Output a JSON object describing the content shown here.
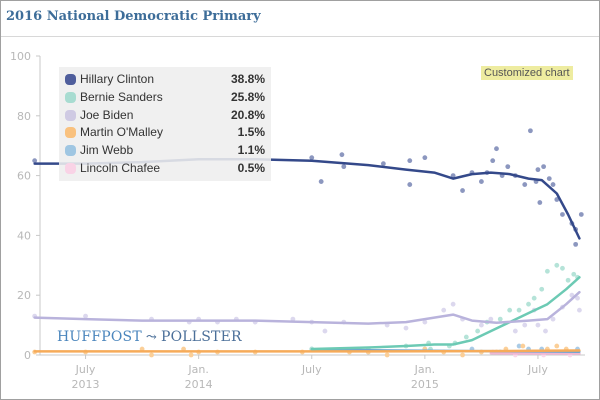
{
  "header": {
    "title": "2016 National Democratic Primary"
  },
  "badge": {
    "label": "Customized chart"
  },
  "logo": {
    "part1": "HUFFPOST",
    "part2": "POLLSTER",
    "icon": "swoosh-icon"
  },
  "legend": {
    "items": [
      {
        "name": "Hillary Clinton",
        "value": "38.8%",
        "color": "#4f5e9c"
      },
      {
        "name": "Bernie Sanders",
        "value": "25.8%",
        "color": "#a8dcd1"
      },
      {
        "name": "Joe Biden",
        "value": "20.8%",
        "color": "#cfcae3"
      },
      {
        "name": "Martin O'Malley",
        "value": "1.5%",
        "color": "#f9c17e"
      },
      {
        "name": "Jim Webb",
        "value": "1.1%",
        "color": "#9fc6e2"
      },
      {
        "name": "Lincoln Chafee",
        "value": "0.5%",
        "color": "#f9d3e6"
      }
    ]
  },
  "chart_data": {
    "type": "line",
    "title": "2016 National Democratic Primary",
    "xlabel": "",
    "ylabel": "",
    "ylim": [
      0,
      100
    ],
    "xlim": [
      "2013-04",
      "2015-09"
    ],
    "yticks": [
      "0",
      "20",
      "40",
      "60",
      "80",
      "100"
    ],
    "xticks": [
      {
        "month": "July",
        "year": "2013",
        "t": 3
      },
      {
        "month": "Jan.",
        "year": "2014",
        "t": 9
      },
      {
        "month": "July",
        "year": "",
        "t": 15
      },
      {
        "month": "Jan.",
        "year": "2015",
        "t": 21
      },
      {
        "month": "July",
        "year": "",
        "t": 27
      }
    ],
    "x_unit": "months since 2013-04",
    "series": [
      {
        "name": "Hillary Clinton",
        "color": "#34498a",
        "dot_color": "#8c97bf",
        "trend": [
          [
            0.3,
            64
          ],
          [
            3,
            64
          ],
          [
            6,
            64.5
          ],
          [
            9,
            65.5
          ],
          [
            12,
            65.5
          ],
          [
            15,
            65
          ],
          [
            18,
            63.5
          ],
          [
            20,
            62
          ],
          [
            21.5,
            61
          ],
          [
            22.5,
            59
          ],
          [
            23.5,
            60.5
          ],
          [
            24.5,
            61
          ],
          [
            25.5,
            60.5
          ],
          [
            26.5,
            59
          ],
          [
            27.2,
            58.5
          ],
          [
            28,
            54
          ],
          [
            28.6,
            47
          ],
          [
            29.2,
            39
          ]
        ],
        "points": [
          [
            0.3,
            65
          ],
          [
            15,
            66
          ],
          [
            15.5,
            58
          ],
          [
            16.6,
            67
          ],
          [
            16.7,
            63
          ],
          [
            18.8,
            64
          ],
          [
            20.2,
            65
          ],
          [
            20.2,
            57
          ],
          [
            21,
            66
          ],
          [
            22.5,
            60
          ],
          [
            23,
            55
          ],
          [
            23.5,
            61
          ],
          [
            24,
            58
          ],
          [
            24.3,
            61
          ],
          [
            24.6,
            65
          ],
          [
            24.8,
            69
          ],
          [
            25.1,
            60
          ],
          [
            25.4,
            63
          ],
          [
            25.8,
            60
          ],
          [
            26.3,
            57
          ],
          [
            26.6,
            75
          ],
          [
            26.9,
            58
          ],
          [
            27,
            62
          ],
          [
            27.3,
            63
          ],
          [
            27.1,
            51
          ],
          [
            27.6,
            59
          ],
          [
            27.8,
            57
          ],
          [
            28,
            52
          ],
          [
            28.3,
            47
          ],
          [
            28.8,
            44
          ],
          [
            29,
            37
          ],
          [
            29.3,
            47
          ],
          [
            29,
            42
          ]
        ]
      },
      {
        "name": "Joe Biden",
        "color": "#b9b3dc",
        "dot_color": "#dcd8ee",
        "trend": [
          [
            0.3,
            12.5
          ],
          [
            3,
            12
          ],
          [
            6,
            11.5
          ],
          [
            9,
            11.5
          ],
          [
            12,
            11.5
          ],
          [
            15,
            11
          ],
          [
            18,
            10.5
          ],
          [
            20,
            11
          ],
          [
            22.5,
            13.5
          ],
          [
            23.5,
            11.5
          ],
          [
            24.8,
            10.8
          ],
          [
            26.5,
            11.5
          ],
          [
            27.5,
            12
          ],
          [
            28.5,
            17
          ],
          [
            29.2,
            21
          ]
        ],
        "points": [
          [
            0.3,
            13
          ],
          [
            3,
            13
          ],
          [
            6.5,
            12
          ],
          [
            8.5,
            11
          ],
          [
            9,
            12
          ],
          [
            10,
            11
          ],
          [
            11,
            12
          ],
          [
            12,
            11
          ],
          [
            14,
            12
          ],
          [
            15,
            11
          ],
          [
            15.7,
            8
          ],
          [
            16.7,
            11
          ],
          [
            19,
            10
          ],
          [
            20,
            9
          ],
          [
            21,
            11
          ],
          [
            22,
            15
          ],
          [
            22.5,
            17
          ],
          [
            23,
            12
          ],
          [
            24,
            10
          ],
          [
            24.5,
            12
          ],
          [
            25.8,
            8
          ],
          [
            26.3,
            10
          ],
          [
            26.8,
            15
          ],
          [
            27,
            10
          ],
          [
            27.4,
            8
          ],
          [
            27.8,
            12
          ],
          [
            28.3,
            16
          ],
          [
            28.8,
            20
          ],
          [
            29.2,
            15
          ],
          [
            29.1,
            19
          ]
        ]
      },
      {
        "name": "Bernie Sanders",
        "color": "#6ccab4",
        "dot_color": "#b5e3d8",
        "trend": [
          [
            15,
            2
          ],
          [
            18,
            2.5
          ],
          [
            20,
            3
          ],
          [
            21.5,
            3.5
          ],
          [
            22.5,
            3.5
          ],
          [
            23.5,
            5
          ],
          [
            24.5,
            8
          ],
          [
            25.5,
            11
          ],
          [
            26.5,
            14
          ],
          [
            27.5,
            17
          ],
          [
            28.5,
            22
          ],
          [
            29.2,
            26
          ]
        ],
        "points": [
          [
            15,
            2
          ],
          [
            18,
            2
          ],
          [
            20,
            3
          ],
          [
            21.2,
            4
          ],
          [
            21.3,
            2
          ],
          [
            22.3,
            3
          ],
          [
            22.6,
            4
          ],
          [
            23.2,
            6
          ],
          [
            23.8,
            8
          ],
          [
            24.3,
            11
          ],
          [
            25,
            12
          ],
          [
            25.5,
            15
          ],
          [
            26,
            15
          ],
          [
            26.5,
            17
          ],
          [
            26.8,
            19
          ],
          [
            27.2,
            22
          ],
          [
            27.5,
            28
          ],
          [
            28,
            30
          ],
          [
            28.3,
            29
          ],
          [
            28.6,
            25
          ],
          [
            29.1,
            26
          ],
          [
            28.9,
            27
          ]
        ]
      },
      {
        "name": "Martin O'Malley",
        "color": "#f6ab59",
        "dot_color": "#fbcf98",
        "trend": [
          [
            0.3,
            1.2
          ],
          [
            6,
            1.2
          ],
          [
            12,
            1.2
          ],
          [
            18,
            1.2
          ],
          [
            24,
            1.3
          ],
          [
            27,
            1.4
          ],
          [
            29.2,
            1.5
          ]
        ],
        "points": [
          [
            0.3,
            1
          ],
          [
            3,
            1
          ],
          [
            6,
            2
          ],
          [
            6.5,
            0
          ],
          [
            8.2,
            2
          ],
          [
            8.6,
            0
          ],
          [
            9,
            1
          ],
          [
            10,
            1
          ],
          [
            12,
            1
          ],
          [
            14.5,
            1
          ],
          [
            17,
            1
          ],
          [
            18,
            1
          ],
          [
            19,
            0
          ],
          [
            21,
            2
          ],
          [
            22,
            1
          ],
          [
            23,
            0
          ],
          [
            24,
            1
          ],
          [
            24.8,
            1
          ],
          [
            25.3,
            2
          ],
          [
            26.2,
            3
          ],
          [
            26.8,
            1
          ],
          [
            27.5,
            2
          ],
          [
            28,
            3
          ],
          [
            28.5,
            2
          ],
          [
            29,
            1
          ]
        ]
      },
      {
        "name": "Jim Webb",
        "color": "#6fa6cf",
        "dot_color": "#aacbe6",
        "trend": [
          [
            15,
            1.8
          ],
          [
            18,
            1.6
          ],
          [
            21,
            1.4
          ],
          [
            24,
            1.3
          ],
          [
            27,
            1.2
          ],
          [
            29.2,
            1.1
          ]
        ],
        "points": [
          [
            15,
            2
          ],
          [
            18,
            1
          ],
          [
            21,
            2
          ],
          [
            23.5,
            2
          ],
          [
            25,
            1
          ],
          [
            26,
            3
          ],
          [
            26.5,
            2
          ],
          [
            27.2,
            2
          ],
          [
            28,
            1
          ],
          [
            28.7,
            1
          ],
          [
            29.1,
            2
          ]
        ]
      },
      {
        "name": "Lincoln Chafee",
        "color": "#f0b7d4",
        "dot_color": "#f9d8e9",
        "trend": [
          [
            24.5,
            0.6
          ],
          [
            26,
            0.5
          ],
          [
            27.5,
            0.5
          ],
          [
            29.2,
            0.5
          ]
        ],
        "points": [
          [
            24.6,
            1
          ],
          [
            25.8,
            0
          ],
          [
            26.5,
            1
          ],
          [
            27.3,
            0
          ],
          [
            28,
            1
          ],
          [
            28.7,
            0
          ],
          [
            29.1,
            1
          ]
        ]
      }
    ]
  }
}
